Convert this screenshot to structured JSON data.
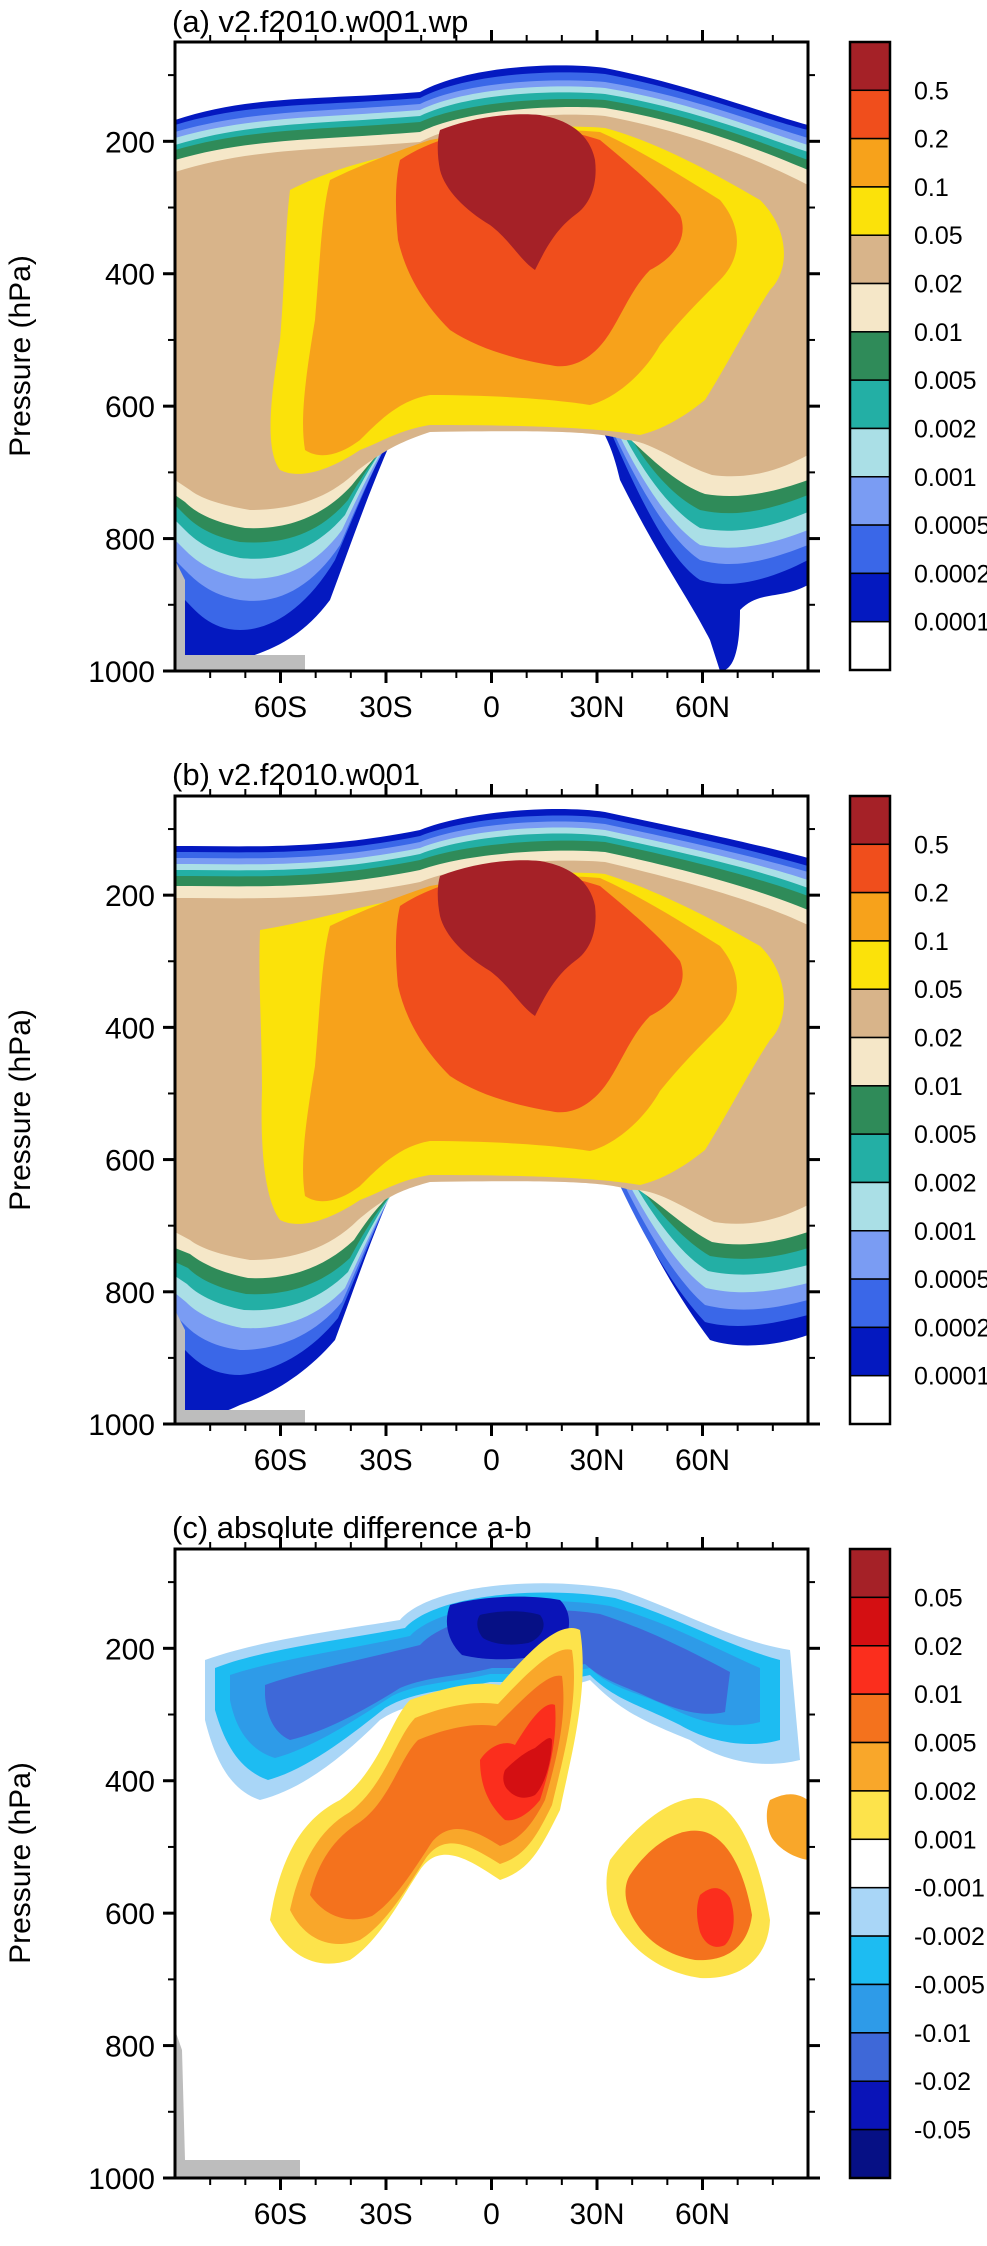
{
  "chart_data": [
    {
      "type": "contour",
      "title": "(a) v2.f2010.w001.wp",
      "ylabel": "Pressure (hPa)",
      "xlabel": "",
      "x_ticks": [
        {
          "label": "60S",
          "lat": -60
        },
        {
          "label": "30S",
          "lat": -30
        },
        {
          "label": "0",
          "lat": 0
        },
        {
          "label": "30N",
          "lat": 30
        },
        {
          "label": "60N",
          "lat": 60
        }
      ],
      "y_ticks": [
        200,
        400,
        600,
        800,
        1000
      ],
      "xlim": [
        -90,
        90
      ],
      "ylim": [
        1000,
        50
      ],
      "grid": false,
      "legend_position": "right",
      "levels": [
        "0.5",
        "0.2",
        "0.1",
        "0.05",
        "0.02",
        "0.01",
        "0.005",
        "0.002",
        "0.001",
        "0.0005",
        "0.0002",
        "0.0001"
      ],
      "colors": [
        "#a52127",
        "#f04e1c",
        "#f7a21b",
        "#fbe20a",
        "#d8b48a",
        "#f5e7c8",
        "#2f8b59",
        "#23afa5",
        "#aadfe6",
        "#7a9cf3",
        "#3a67e8",
        "#0419c0",
        "#ffffff"
      ]
    },
    {
      "type": "contour",
      "title": "(b) v2.f2010.w001",
      "ylabel": "Pressure (hPa)",
      "xlabel": "",
      "x_ticks": [
        {
          "label": "60S",
          "lat": -60
        },
        {
          "label": "30S",
          "lat": -30
        },
        {
          "label": "0",
          "lat": 0
        },
        {
          "label": "30N",
          "lat": 30
        },
        {
          "label": "60N",
          "lat": 60
        }
      ],
      "y_ticks": [
        200,
        400,
        600,
        800,
        1000
      ],
      "xlim": [
        -90,
        90
      ],
      "ylim": [
        1000,
        50
      ],
      "grid": false,
      "legend_position": "right",
      "levels": [
        "0.5",
        "0.2",
        "0.1",
        "0.05",
        "0.02",
        "0.01",
        "0.005",
        "0.002",
        "0.001",
        "0.0005",
        "0.0002",
        "0.0001"
      ],
      "colors": [
        "#a52127",
        "#f04e1c",
        "#f7a21b",
        "#fbe20a",
        "#d8b48a",
        "#f5e7c8",
        "#2f8b59",
        "#23afa5",
        "#aadfe6",
        "#7a9cf3",
        "#3a67e8",
        "#0419c0",
        "#ffffff"
      ]
    },
    {
      "type": "contour",
      "title": "(c) absolute difference a-b",
      "ylabel": "Pressure (hPa)",
      "xlabel": "",
      "x_ticks": [
        {
          "label": "60S",
          "lat": -60
        },
        {
          "label": "30S",
          "lat": -30
        },
        {
          "label": "0",
          "lat": 0
        },
        {
          "label": "30N",
          "lat": 30
        },
        {
          "label": "60N",
          "lat": 60
        }
      ],
      "y_ticks": [
        200,
        400,
        600,
        800,
        1000
      ],
      "xlim": [
        -90,
        90
      ],
      "ylim": [
        1000,
        50
      ],
      "grid": false,
      "legend_position": "right",
      "levels": [
        "0.05",
        "0.02",
        "0.01",
        "0.005",
        "0.002",
        "0.001",
        "-0.001",
        "-0.002",
        "-0.005",
        "-0.01",
        "-0.02",
        "-0.05"
      ],
      "colors": [
        "#a52127",
        "#d40f12",
        "#fb2e1d",
        "#f4721d",
        "#f9a72a",
        "#fde34b",
        "#ffffff",
        "#a9d6f7",
        "#1dbcf2",
        "#2e9be8",
        "#3e68d8",
        "#0a14b8",
        "#061085"
      ]
    }
  ]
}
